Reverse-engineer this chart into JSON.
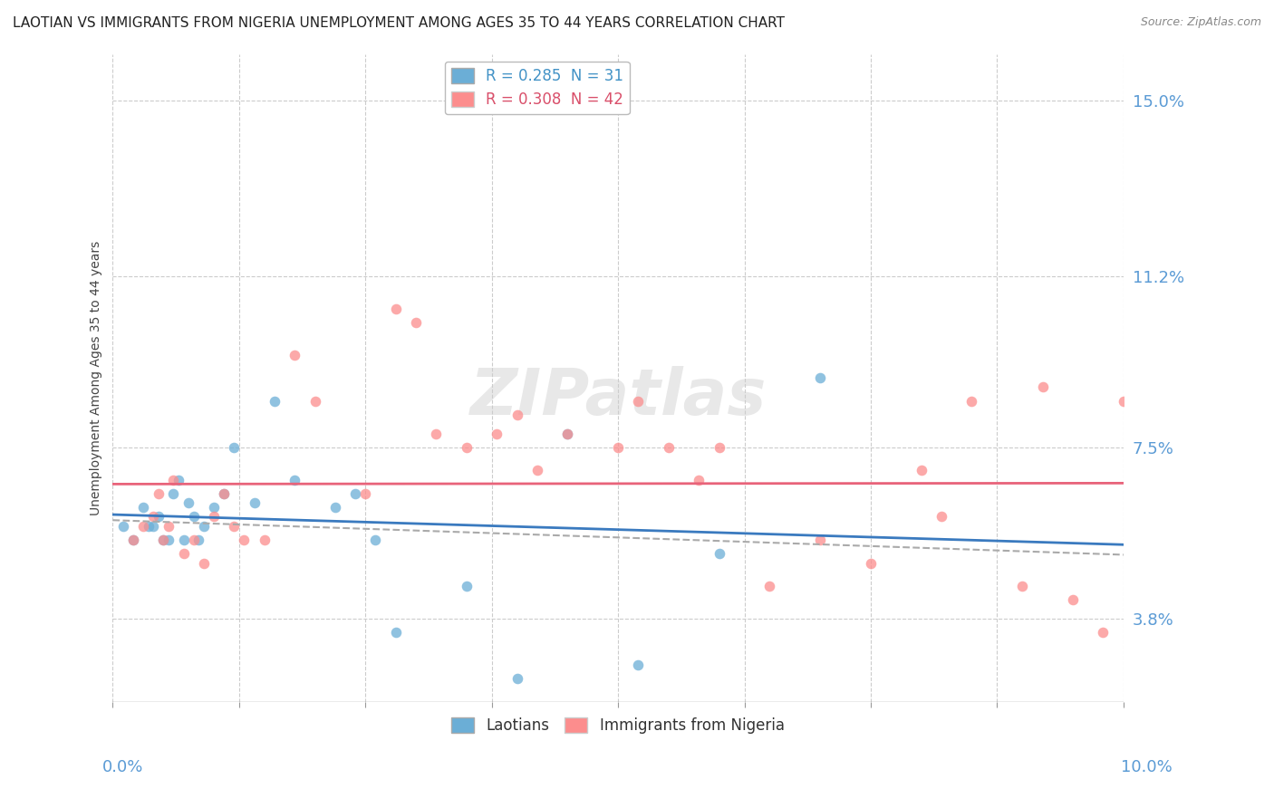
{
  "title": "LAOTIAN VS IMMIGRANTS FROM NIGERIA UNEMPLOYMENT AMONG AGES 35 TO 44 YEARS CORRELATION CHART",
  "source": "Source: ZipAtlas.com",
  "ylabel_ticks": [
    3.8,
    7.5,
    11.2,
    15.0
  ],
  "xlim": [
    0.0,
    10.0
  ],
  "ylim": [
    2.0,
    16.0
  ],
  "legend_entry_1": "R = 0.285  N = 31",
  "legend_entry_2": "R = 0.308  N = 42",
  "legend_label_1": "Laotians",
  "legend_label_2": "Immigrants from Nigeria",
  "laotian_color": "#6baed6",
  "nigeria_color": "#fc8d8d",
  "trend_laotian_color": "#3a7abf",
  "trend_nigeria_color": "#e8637a",
  "trend_dashed_color": "#aaaaaa",
  "background_color": "#ffffff",
  "grid_color": "#cccccc",
  "watermark": "ZIPatlas",
  "title_fontsize": 11,
  "source_fontsize": 9,
  "ylabel_label": "Unemployment Among Ages 35 to 44 years",
  "lao_x": [
    0.1,
    0.2,
    0.3,
    0.35,
    0.4,
    0.45,
    0.5,
    0.55,
    0.6,
    0.65,
    0.7,
    0.75,
    0.8,
    0.85,
    0.9,
    1.0,
    1.1,
    1.2,
    1.4,
    1.6,
    1.8,
    2.2,
    2.4,
    2.6,
    2.8,
    3.5,
    4.0,
    4.5,
    5.2,
    6.0,
    7.0
  ],
  "lao_y": [
    5.8,
    5.5,
    6.2,
    5.8,
    5.8,
    6.0,
    5.5,
    5.5,
    6.5,
    6.8,
    5.5,
    6.3,
    6.0,
    5.5,
    5.8,
    6.2,
    6.5,
    7.5,
    6.3,
    8.5,
    6.8,
    6.2,
    6.5,
    5.5,
    3.5,
    4.5,
    2.5,
    7.8,
    2.8,
    5.2,
    9.0
  ],
  "nig_x": [
    0.2,
    0.3,
    0.4,
    0.45,
    0.5,
    0.55,
    0.6,
    0.7,
    0.8,
    0.9,
    1.0,
    1.1,
    1.2,
    1.3,
    1.5,
    1.8,
    2.0,
    2.5,
    2.8,
    3.0,
    3.2,
    3.5,
    3.8,
    4.0,
    4.2,
    4.5,
    5.0,
    5.2,
    5.5,
    5.8,
    6.0,
    6.5,
    7.0,
    7.5,
    8.0,
    8.2,
    8.5,
    9.0,
    9.2,
    9.5,
    9.8,
    10.0
  ],
  "nig_y": [
    5.5,
    5.8,
    6.0,
    6.5,
    5.5,
    5.8,
    6.8,
    5.2,
    5.5,
    5.0,
    6.0,
    6.5,
    5.8,
    5.5,
    5.5,
    9.5,
    8.5,
    6.5,
    10.5,
    10.2,
    7.8,
    7.5,
    7.8,
    8.2,
    7.0,
    7.8,
    7.5,
    8.5,
    7.5,
    6.8,
    7.5,
    4.5,
    5.5,
    5.0,
    7.0,
    6.0,
    8.5,
    4.5,
    8.8,
    4.2,
    3.5,
    8.5
  ]
}
